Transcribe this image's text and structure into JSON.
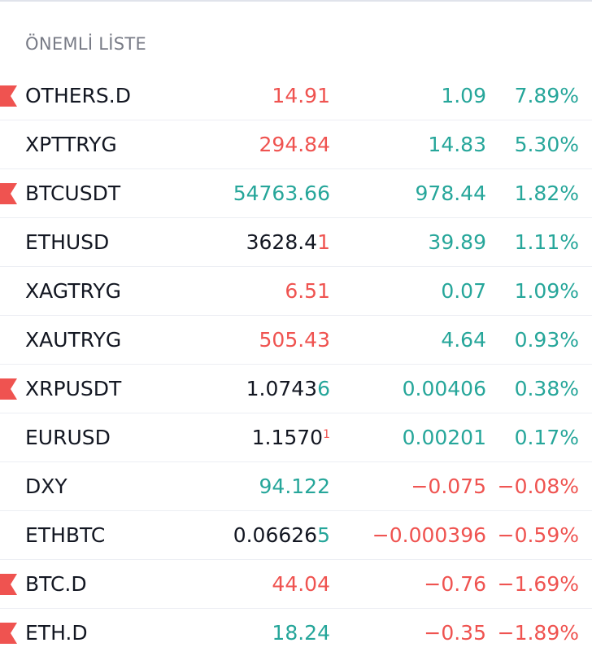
{
  "watchlist": {
    "title": "ÖNEMLİ LİSTE",
    "colors": {
      "up": "#26a69a",
      "down": "#ef5350",
      "neutral": "#131722",
      "flag": "#ef5350"
    },
    "rows": [
      {
        "symbol": "OTHERS.D",
        "flag": true,
        "last_main": "14.91",
        "last_tail": "",
        "last_color": "down",
        "tail_color": "",
        "tail_sup": false,
        "change": "1.09",
        "change_color": "up",
        "pct": "7.89%",
        "pct_color": "up"
      },
      {
        "symbol": "XPTTRYG",
        "flag": false,
        "last_main": "294.84",
        "last_tail": "",
        "last_color": "down",
        "tail_color": "",
        "tail_sup": false,
        "change": "14.83",
        "change_color": "up",
        "pct": "5.30%",
        "pct_color": "up"
      },
      {
        "symbol": "BTCUSDT",
        "flag": true,
        "last_main": "54763.66",
        "last_tail": "",
        "last_color": "up",
        "tail_color": "",
        "tail_sup": false,
        "change": "978.44",
        "change_color": "up",
        "pct": "1.82%",
        "pct_color": "up"
      },
      {
        "symbol": "ETHUSD",
        "flag": false,
        "last_main": "3628.4",
        "last_tail": "1",
        "last_color": "neutral",
        "tail_color": "down",
        "tail_sup": false,
        "change": "39.89",
        "change_color": "up",
        "pct": "1.11%",
        "pct_color": "up"
      },
      {
        "symbol": "XAGTRYG",
        "flag": false,
        "last_main": "6.51",
        "last_tail": "",
        "last_color": "down",
        "tail_color": "",
        "tail_sup": false,
        "change": "0.07",
        "change_color": "up",
        "pct": "1.09%",
        "pct_color": "up"
      },
      {
        "symbol": "XAUTRYG",
        "flag": false,
        "last_main": "505.43",
        "last_tail": "",
        "last_color": "down",
        "tail_color": "",
        "tail_sup": false,
        "change": "4.64",
        "change_color": "up",
        "pct": "0.93%",
        "pct_color": "up"
      },
      {
        "symbol": "XRPUSDT",
        "flag": true,
        "last_main": "1.0743",
        "last_tail": "6",
        "last_color": "neutral",
        "tail_color": "up",
        "tail_sup": false,
        "change": "0.00406",
        "change_color": "up",
        "pct": "0.38%",
        "pct_color": "up"
      },
      {
        "symbol": "EURUSD",
        "flag": false,
        "last_main": "1.1570",
        "last_tail": "1",
        "last_color": "neutral",
        "tail_color": "down",
        "tail_sup": true,
        "change": "0.00201",
        "change_color": "up",
        "pct": "0.17%",
        "pct_color": "up"
      },
      {
        "symbol": "DXY",
        "flag": false,
        "last_main": "94.122",
        "last_tail": "",
        "last_color": "up",
        "tail_color": "",
        "tail_sup": false,
        "change": "−0.075",
        "change_color": "down",
        "pct": "−0.08%",
        "pct_color": "down"
      },
      {
        "symbol": "ETHBTC",
        "flag": false,
        "last_main": "0.06626",
        "last_tail": "5",
        "last_color": "neutral",
        "tail_color": "up",
        "tail_sup": false,
        "change": "−0.000396",
        "change_color": "down",
        "pct": "−0.59%",
        "pct_color": "down"
      },
      {
        "symbol": "BTC.D",
        "flag": true,
        "last_main": "44.04",
        "last_tail": "",
        "last_color": "down",
        "tail_color": "",
        "tail_sup": false,
        "change": "−0.76",
        "change_color": "down",
        "pct": "−1.69%",
        "pct_color": "down"
      },
      {
        "symbol": "ETH.D",
        "flag": true,
        "last_main": "18.24",
        "last_tail": "",
        "last_color": "up",
        "tail_color": "",
        "tail_sup": false,
        "change": "−0.35",
        "change_color": "down",
        "pct": "−1.89%",
        "pct_color": "down"
      }
    ]
  }
}
